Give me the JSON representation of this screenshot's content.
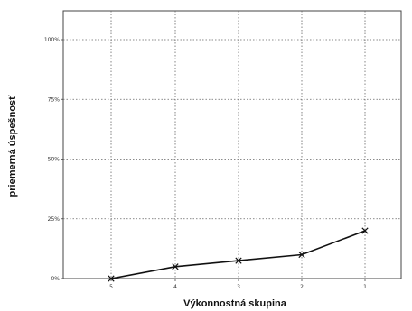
{
  "chart_data": {
    "type": "line",
    "xlabel": "Výkonnostná skupina",
    "ylabel": "priemerná úspešnosť",
    "categories": [
      "5",
      "4",
      "3",
      "2",
      "1"
    ],
    "y_ticks": [
      "0%",
      "25%",
      "50%",
      "75%",
      "100%"
    ],
    "y_tick_values": [
      0,
      25,
      50,
      75,
      100
    ],
    "ylim": [
      0,
      100
    ],
    "grid": true,
    "series": [
      {
        "values": [
          0,
          5,
          7.5,
          10,
          20
        ],
        "marker": "x",
        "color": "#111111"
      }
    ]
  }
}
